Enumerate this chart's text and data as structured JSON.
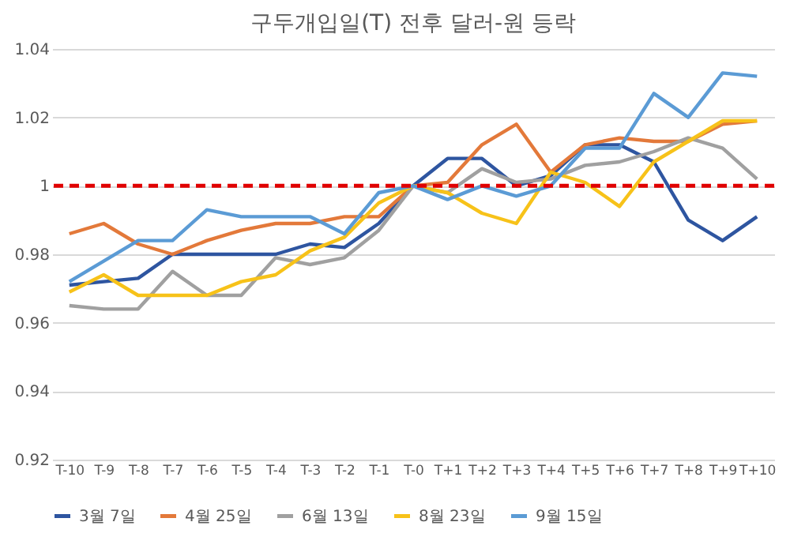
{
  "chart_data": {
    "type": "line",
    "title": "구두개입일(T) 전후 달러-원 등락",
    "categories": [
      "T-10",
      "T-9",
      "T-8",
      "T-7",
      "T-6",
      "T-5",
      "T-4",
      "T-3",
      "T-2",
      "T-1",
      "T-0",
      "T+1",
      "T+2",
      "T+3",
      "T+4",
      "T+5",
      "T+6",
      "T+7",
      "T+8",
      "T+9",
      "T+10"
    ],
    "series": [
      {
        "name": "3월 7일",
        "color": "#2e55a0",
        "values": [
          0.971,
          0.972,
          0.973,
          0.98,
          0.98,
          0.98,
          0.98,
          0.983,
          0.982,
          0.989,
          1.0,
          1.008,
          1.008,
          1.0,
          1.003,
          1.012,
          1.012,
          1.007,
          0.99,
          0.984,
          0.991
        ]
      },
      {
        "name": "4월 25일",
        "color": "#e3793a",
        "values": [
          0.986,
          0.989,
          0.983,
          0.98,
          0.984,
          0.987,
          0.989,
          0.989,
          0.991,
          0.991,
          1.0,
          1.001,
          1.012,
          1.018,
          1.004,
          1.012,
          1.014,
          1.013,
          1.013,
          1.018,
          1.019
        ]
      },
      {
        "name": "6월 13일",
        "color": "#a0a0a0",
        "values": [
          0.965,
          0.964,
          0.964,
          0.975,
          0.968,
          0.968,
          0.979,
          0.977,
          0.979,
          0.987,
          1.0,
          0.998,
          1.005,
          1.001,
          1.002,
          1.006,
          1.007,
          1.01,
          1.014,
          1.011,
          1.002
        ]
      },
      {
        "name": "8월 23일",
        "color": "#f7c219",
        "values": [
          0.969,
          0.974,
          0.968,
          0.968,
          0.968,
          0.972,
          0.974,
          0.981,
          0.985,
          0.995,
          1.0,
          0.998,
          0.992,
          0.989,
          1.004,
          1.001,
          0.994,
          1.007,
          1.013,
          1.019,
          1.019
        ]
      },
      {
        "name": "9월 15일",
        "color": "#5b9bd5",
        "values": [
          0.972,
          0.978,
          0.984,
          0.984,
          0.993,
          0.991,
          0.991,
          0.991,
          0.986,
          0.998,
          1.0,
          0.996,
          1.0,
          0.997,
          1.0,
          1.011,
          1.011,
          1.027,
          1.02,
          1.033,
          1.032
        ]
      }
    ],
    "ylim": [
      0.92,
      1.04
    ],
    "yticks": [
      0.92,
      0.94,
      0.96,
      0.98,
      1,
      1.02,
      1.04
    ],
    "ref_lines": [
      {
        "axis": "y",
        "value": 1,
        "color": "#e00000",
        "line_style": "dashed"
      }
    ],
    "grid": "y",
    "legend": "bottom",
    "line_style": "solid",
    "marker": "none"
  }
}
